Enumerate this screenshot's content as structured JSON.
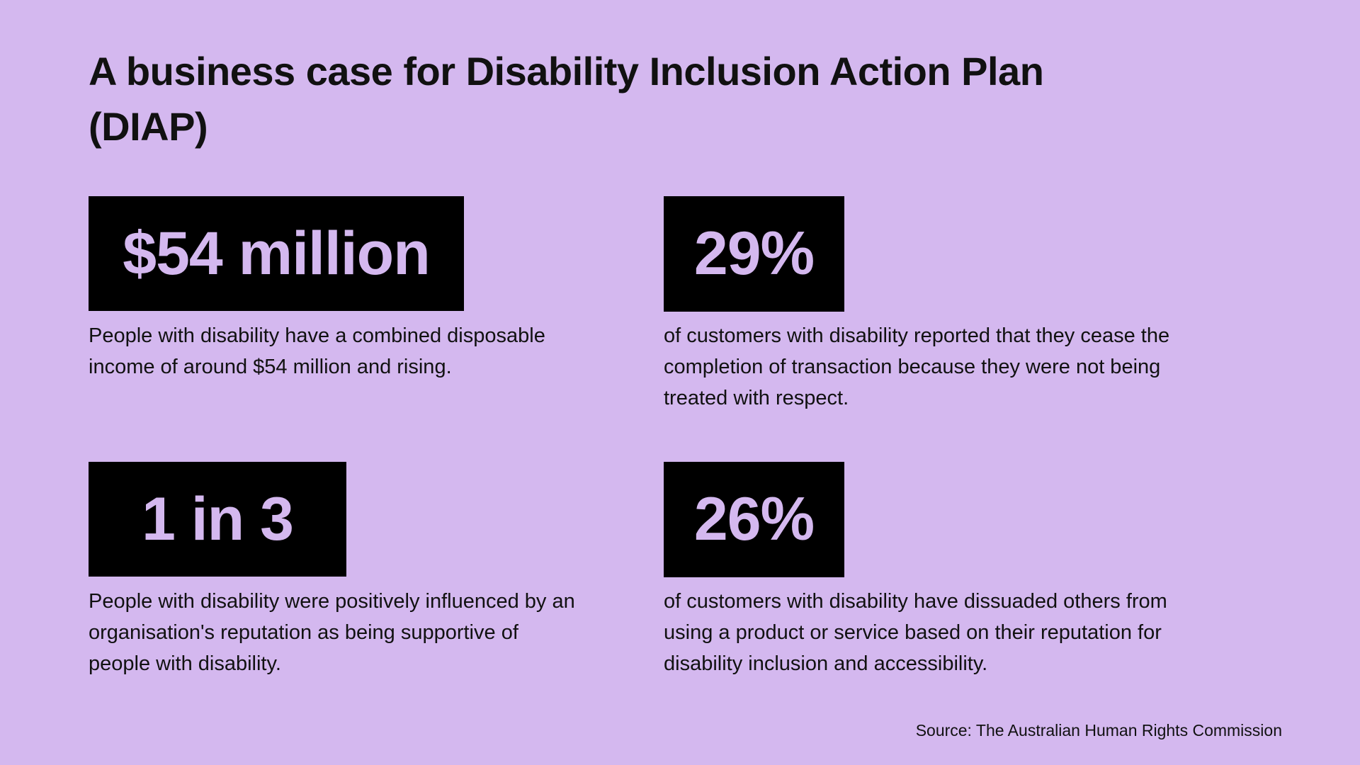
{
  "title": "A business case for Disability Inclusion Action Plan (DIAP)",
  "stats": [
    {
      "value": "$54 million",
      "description": "People with disability have a combined disposable income of around $54 million and rising."
    },
    {
      "value": "29%",
      "description": "of customers with disability reported that they cease the completion of transaction because they were not being treated with respect."
    },
    {
      "value": "1 in 3",
      "description": "People with disability were positively influenced by an organisation's  reputation as being supportive of people with disability."
    },
    {
      "value": "26%",
      "description": "of customers with disability have dissuaded others from using a product or service based on their reputation for disability inclusion and accessibility."
    }
  ],
  "source": "Source: The Australian Human Rights Commission",
  "colors": {
    "background": "#d4b8ef",
    "box": "#000000"
  }
}
